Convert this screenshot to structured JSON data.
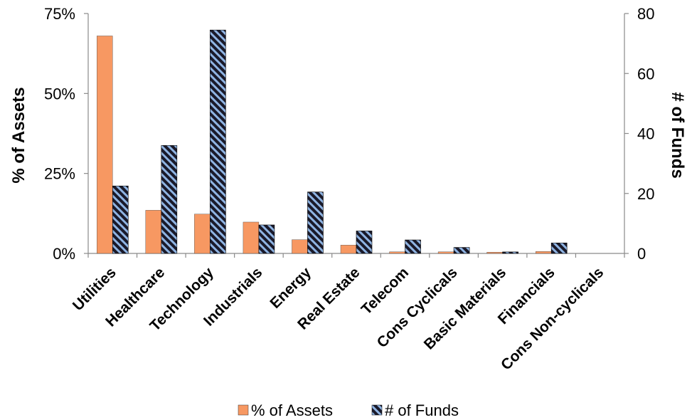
{
  "chart_data": {
    "type": "bar",
    "categories": [
      "Utilities",
      "Healthcare",
      "Technology",
      "Industrials",
      "Energy",
      "Real Estate",
      "Telecom",
      "Cons Cyclicals",
      "Basic Materials",
      "Financials",
      "Cons Non-cyclicals"
    ],
    "series": [
      {
        "name": "% of Assets",
        "axis": "left",
        "color": "#f79862",
        "values": [
          68,
          13.5,
          12.3,
          9.8,
          4.3,
          2.6,
          0.5,
          0.5,
          0.4,
          0.6,
          0
        ]
      },
      {
        "name": "# of Funds",
        "axis": "right",
        "color": "#1a1a2a",
        "pattern_color": "#8fb4e3",
        "values": [
          22.5,
          36,
          74.5,
          9.5,
          20.5,
          7.5,
          4.5,
          2,
          0.5,
          3.5,
          0
        ]
      }
    ],
    "ylabel": "% of Assets",
    "y2label": "# of Funds",
    "ylim": [
      0,
      75
    ],
    "y2lim": [
      0,
      80
    ],
    "yticks": [
      "0%",
      "25%",
      "50%",
      "75%"
    ],
    "y2ticks": [
      "0",
      "20",
      "40",
      "60",
      "80"
    ],
    "grid": false,
    "legend": "bottom"
  }
}
